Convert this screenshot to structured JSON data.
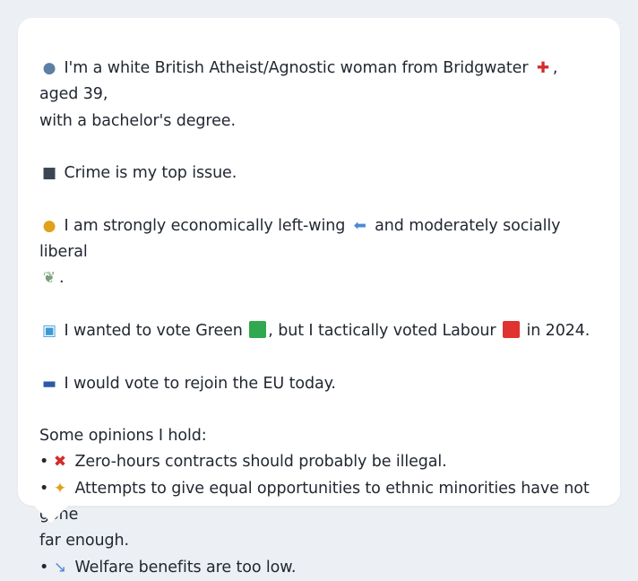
{
  "card": {
    "intro": {
      "icon": "person-icon",
      "text_1": "I'm a white British Atheist/Agnostic woman from Bridgwater",
      "flag_icon": "england-flag-icon",
      "text_2": ", aged 39,",
      "text_3": "with a bachelor's degree."
    },
    "top_issue": {
      "icon": "police-car-icon",
      "text": "Crime is my top issue."
    },
    "ideology": {
      "icon": "thinking-face-icon",
      "text_1": "I am strongly economically left-wing",
      "arrow_icon": "left-arrow-icon",
      "text_2": "and moderately socially liberal",
      "dove_icon": "dove-icon",
      "text_3": "."
    },
    "vote": {
      "icon": "ballot-box-icon",
      "text_1": "I wanted to vote Green",
      "green_color": "#2fa84f",
      "text_2": ", but I tactically voted Labour",
      "red_color": "#e0322f",
      "text_3": "in 2024."
    },
    "eu": {
      "icon": "eu-flag-icon",
      "text": "I would vote to rejoin the EU today."
    },
    "opinions": {
      "heading": "Some opinions I hold:",
      "bullet": "•",
      "items": [
        {
          "icon": "cross-mark-icon",
          "text": "Zero-hours contracts should probably be illegal."
        },
        {
          "icon": "handshake-icon",
          "text_1": "Attempts to give equal opportunities to ethnic minorities have not gone",
          "text_2": "far enough."
        },
        {
          "icon": "chart-decreasing-icon",
          "text": "Welfare benefits are too low."
        }
      ]
    }
  }
}
